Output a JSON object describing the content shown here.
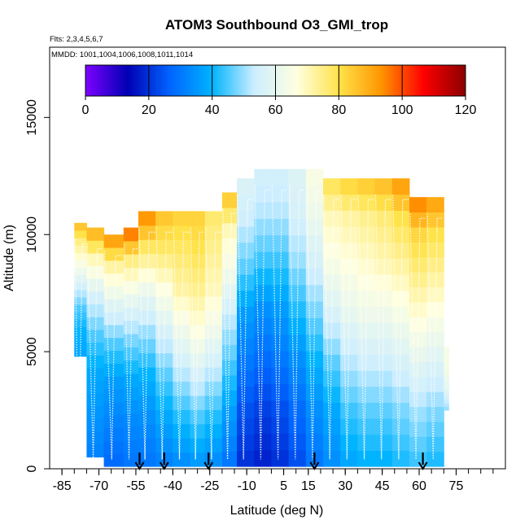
{
  "chart_data": {
    "type": "heatmap",
    "title": "ATOM3 Southbound O3_GMI_trop",
    "flights_note": "Flts: 2,3,4,5,6,7",
    "dates_note": "MMDD: 1001,1004,1006,1008,1011,1014",
    "xlabel": "Latitude (deg N)",
    "ylabel": "Altitude (m)",
    "xlim": [
      -90,
      95
    ],
    "ylim": [
      0,
      18000
    ],
    "x_ticks": [
      -85,
      -70,
      -55,
      -40,
      -25,
      -10,
      5,
      15,
      30,
      45,
      60,
      75
    ],
    "x_minor_ticks": [
      -85,
      -80,
      -75,
      -70,
      -65,
      -60,
      -55,
      -50,
      -45,
      -40,
      -35,
      -30,
      -25,
      -20,
      -15,
      -10,
      -5,
      0,
      5,
      10,
      15,
      20,
      25,
      30,
      35,
      40,
      45,
      50,
      55,
      60,
      65,
      70,
      75,
      80,
      85,
      90
    ],
    "y_ticks": [
      0,
      5000,
      10000,
      15000
    ],
    "colorbar": {
      "min": 0,
      "max": 120,
      "ticks": [
        0,
        20,
        40,
        60,
        80,
        100,
        120
      ],
      "colors": [
        "#7f00ff",
        "#0000b4",
        "#0064ff",
        "#00b4ff",
        "#cdeeff",
        "#ffffe0",
        "#ffe34b",
        "#ff9600",
        "#ff0000",
        "#8b0000"
      ]
    },
    "arrow_latitudes": [
      -53.5,
      -43.5,
      -25.5,
      17.5,
      61.5
    ],
    "columns": [
      {
        "lat0": -80,
        "lat1": -75,
        "top": 10500,
        "bottom": 4800,
        "values": [
          38,
          40,
          45,
          55,
          65,
          75,
          90
        ]
      },
      {
        "lat0": -75,
        "lat1": -68,
        "top": 10300,
        "bottom": 500,
        "values": [
          32,
          35,
          38,
          45,
          55,
          70,
          95
        ]
      },
      {
        "lat0": -68,
        "lat1": -60,
        "top": 10000,
        "bottom": 100,
        "values": [
          28,
          32,
          36,
          45,
          58,
          72,
          100
        ]
      },
      {
        "lat0": -60,
        "lat1": -54,
        "top": 10300,
        "bottom": 100,
        "values": [
          30,
          33,
          38,
          48,
          60,
          75,
          105
        ]
      },
      {
        "lat0": -54,
        "lat1": -47,
        "top": 11000,
        "bottom": 100,
        "values": [
          30,
          34,
          40,
          50,
          62,
          78,
          100
        ]
      },
      {
        "lat0": -47,
        "lat1": -40,
        "top": 11000,
        "bottom": 100,
        "values": [
          32,
          38,
          46,
          56,
          66,
          78,
          88
        ]
      },
      {
        "lat0": -40,
        "lat1": -33,
        "top": 11000,
        "bottom": 100,
        "values": [
          34,
          42,
          52,
          62,
          72,
          78,
          85
        ]
      },
      {
        "lat0": -33,
        "lat1": -27,
        "top": 11000,
        "bottom": 100,
        "values": [
          36,
          45,
          56,
          66,
          74,
          80,
          84
        ]
      },
      {
        "lat0": -27,
        "lat1": -20,
        "top": 11000,
        "bottom": 100,
        "values": [
          34,
          42,
          52,
          62,
          70,
          74,
          78
        ]
      },
      {
        "lat0": -20,
        "lat1": -14,
        "top": 11800,
        "bottom": 100,
        "values": [
          30,
          36,
          44,
          52,
          62,
          70,
          90
        ]
      },
      {
        "lat0": -14,
        "lat1": -7,
        "top": 12400,
        "bottom": 100,
        "values": [
          20,
          24,
          30,
          36,
          46,
          54,
          58
        ]
      },
      {
        "lat0": -7,
        "lat1": 0,
        "top": 12800,
        "bottom": 100,
        "values": [
          18,
          22,
          28,
          34,
          44,
          52,
          56
        ]
      },
      {
        "lat0": 0,
        "lat1": 7,
        "top": 12800,
        "bottom": 100,
        "values": [
          20,
          24,
          30,
          36,
          44,
          52,
          56
        ]
      },
      {
        "lat0": 7,
        "lat1": 14,
        "top": 12800,
        "bottom": 100,
        "values": [
          24,
          28,
          34,
          42,
          50,
          56,
          58
        ]
      },
      {
        "lat0": 14,
        "lat1": 21,
        "top": 12800,
        "bottom": 100,
        "values": [
          30,
          34,
          40,
          48,
          56,
          62,
          66
        ]
      },
      {
        "lat0": 21,
        "lat1": 28,
        "top": 12400,
        "bottom": 100,
        "values": [
          34,
          38,
          46,
          56,
          64,
          70,
          82
        ]
      },
      {
        "lat0": 28,
        "lat1": 35,
        "top": 12400,
        "bottom": 100,
        "values": [
          38,
          44,
          52,
          60,
          66,
          72,
          86
        ]
      },
      {
        "lat0": 35,
        "lat1": 42,
        "top": 12400,
        "bottom": 100,
        "values": [
          40,
          46,
          54,
          62,
          68,
          74,
          88
        ]
      },
      {
        "lat0": 42,
        "lat1": 49,
        "top": 12400,
        "bottom": 100,
        "values": [
          40,
          46,
          54,
          62,
          70,
          76,
          90
        ]
      },
      {
        "lat0": 49,
        "lat1": 56,
        "top": 12400,
        "bottom": 100,
        "values": [
          42,
          48,
          56,
          64,
          72,
          80,
          96
        ]
      },
      {
        "lat0": 56,
        "lat1": 63,
        "top": 11600,
        "bottom": 100,
        "values": [
          44,
          50,
          58,
          66,
          74,
          82,
          100
        ]
      },
      {
        "lat0": 63,
        "lat1": 70,
        "top": 11600,
        "bottom": 100,
        "values": [
          42,
          48,
          56,
          64,
          72,
          80,
          95
        ]
      },
      {
        "lat0": 70,
        "lat1": 72,
        "top": 5200,
        "bottom": 2500,
        "values": [
          50,
          55,
          60,
          62,
          64,
          64,
          64
        ]
      }
    ]
  }
}
